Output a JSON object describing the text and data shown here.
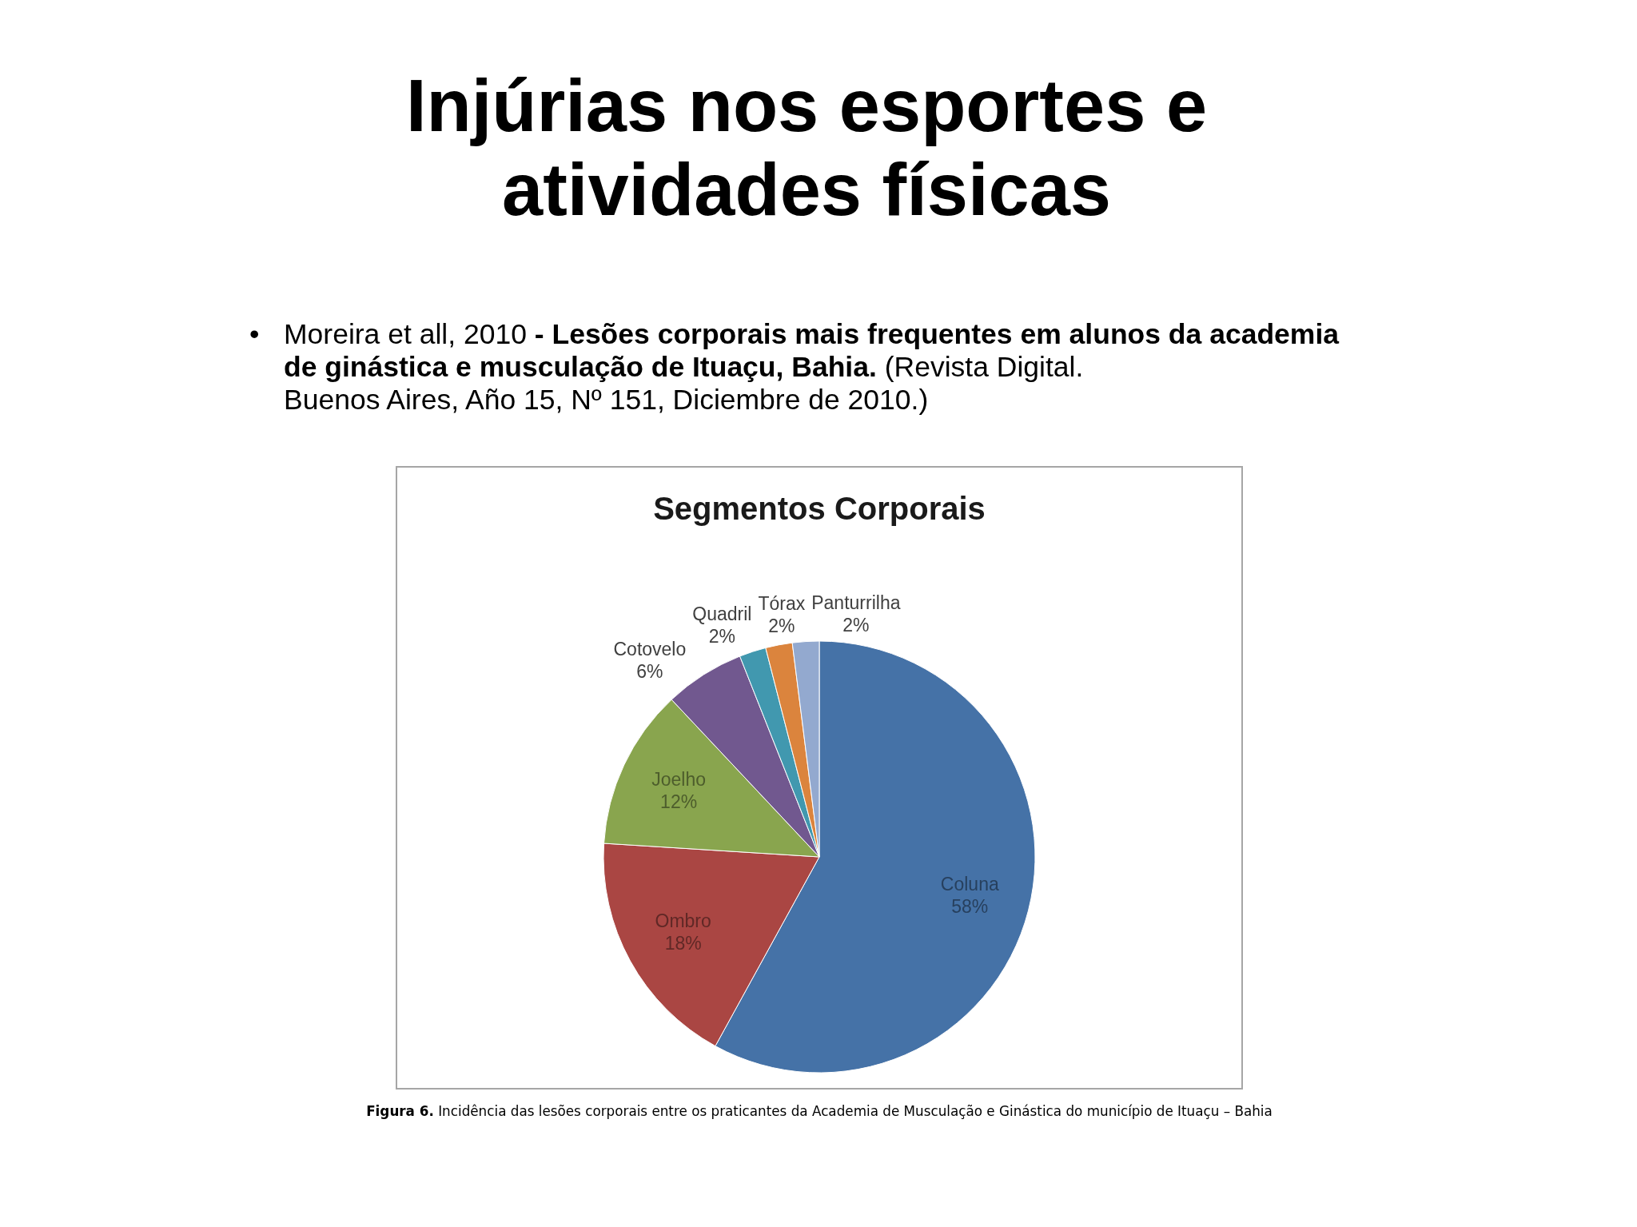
{
  "chart_data": {
    "type": "pie",
    "title": "Injúrias nos esportes e atividades físicas",
    "subtitle": "Segmentos Corporais",
    "categories": [
      "Coluna",
      "Ombro",
      "Joelho",
      "Cotovelo",
      "Quadril",
      "Tórax",
      "Panturrilha"
    ],
    "values": [
      58,
      18,
      12,
      6,
      2,
      2,
      2
    ],
    "value_labels": [
      "58%",
      "18%",
      "12%",
      "6%",
      "2%",
      "2%",
      "2%"
    ],
    "colors": [
      "#4572a7",
      "#aa4643",
      "#89a54e",
      "#71588f",
      "#4198af",
      "#db843d",
      "#93a9cf"
    ],
    "annotations": [
      "•",
      "Moreira et all, 2010",
      "- Lesões corporais mais frequentes em alunos da academia",
      "de ginástica e musculação de Ituaçu, Bahia.",
      "(Revista Digital.",
      "Buenos Aires, Año 15, Nº 151, Diciembre de 2010.)",
      "Figura 6.",
      "Incidência das lesões corporais entre os praticantes da Academia de Musculação e Ginástica do município de Ituaçu – Bahia"
    ]
  }
}
